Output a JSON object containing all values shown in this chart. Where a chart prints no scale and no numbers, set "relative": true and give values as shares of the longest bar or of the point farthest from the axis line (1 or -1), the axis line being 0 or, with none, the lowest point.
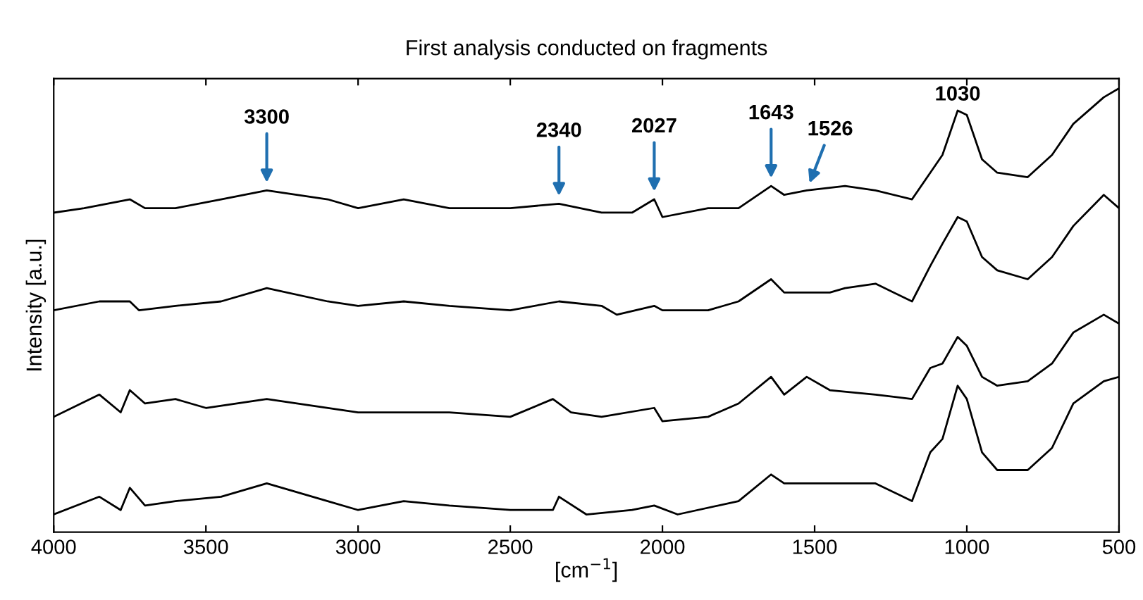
{
  "chart_data": {
    "type": "line",
    "title": "First analysis conducted on fragments",
    "xlabel": "[cm$^{−1}$]",
    "ylabel": "Intensity [a.u.]",
    "relative": true,
    "xlim": [
      4000,
      500
    ],
    "xticks": [
      4000,
      3500,
      3000,
      2500,
      2000,
      1500,
      1000,
      500
    ],
    "grid": false,
    "marker": "none",
    "line_style": "solid",
    "series": [
      {
        "color": "#000000",
        "x": [
          4000,
          3900,
          3750,
          3700,
          3600,
          3450,
          3300,
          3100,
          3000,
          2850,
          2700,
          2500,
          2340,
          2200,
          2100,
          2027,
          2000,
          1850,
          1750,
          1643,
          1600,
          1526,
          1400,
          1300,
          1180,
          1120,
          1080,
          1030,
          1000,
          950,
          900,
          800,
          720,
          650,
          550,
          500
        ],
        "values": [
          0.72,
          0.73,
          0.75,
          0.73,
          0.73,
          0.75,
          0.77,
          0.75,
          0.73,
          0.75,
          0.73,
          0.73,
          0.74,
          0.72,
          0.72,
          0.75,
          0.71,
          0.73,
          0.73,
          0.78,
          0.76,
          0.77,
          0.78,
          0.77,
          0.75,
          0.81,
          0.85,
          0.95,
          0.94,
          0.84,
          0.81,
          0.8,
          0.85,
          0.92,
          0.98,
          1.0
        ]
      },
      {
        "color": "#000000",
        "x": [
          4000,
          3850,
          3750,
          3720,
          3600,
          3450,
          3300,
          3100,
          3000,
          2850,
          2700,
          2500,
          2340,
          2200,
          2150,
          2027,
          2000,
          1850,
          1750,
          1643,
          1600,
          1526,
          1450,
          1400,
          1300,
          1180,
          1120,
          1080,
          1030,
          1000,
          950,
          900,
          800,
          720,
          650,
          550,
          500
        ],
        "values": [
          0.5,
          0.52,
          0.52,
          0.5,
          0.51,
          0.52,
          0.55,
          0.52,
          0.51,
          0.52,
          0.51,
          0.5,
          0.52,
          0.51,
          0.49,
          0.51,
          0.5,
          0.5,
          0.52,
          0.57,
          0.54,
          0.54,
          0.54,
          0.55,
          0.56,
          0.52,
          0.6,
          0.65,
          0.71,
          0.7,
          0.62,
          0.59,
          0.57,
          0.62,
          0.69,
          0.76,
          0.73
        ]
      },
      {
        "color": "#000000",
        "x": [
          4000,
          3850,
          3780,
          3750,
          3700,
          3600,
          3500,
          3300,
          3000,
          2850,
          2700,
          2500,
          2360,
          2300,
          2200,
          2027,
          2000,
          1850,
          1750,
          1643,
          1600,
          1526,
          1450,
          1300,
          1180,
          1120,
          1080,
          1030,
          1000,
          950,
          900,
          800,
          720,
          650,
          550,
          500
        ],
        "values": [
          0.26,
          0.31,
          0.27,
          0.32,
          0.29,
          0.3,
          0.28,
          0.3,
          0.27,
          0.27,
          0.27,
          0.26,
          0.3,
          0.27,
          0.26,
          0.28,
          0.25,
          0.26,
          0.29,
          0.35,
          0.31,
          0.35,
          0.32,
          0.31,
          0.3,
          0.37,
          0.38,
          0.44,
          0.42,
          0.35,
          0.33,
          0.34,
          0.38,
          0.45,
          0.49,
          0.47
        ]
      },
      {
        "color": "#000000",
        "x": [
          4000,
          3850,
          3780,
          3750,
          3700,
          3600,
          3450,
          3300,
          3100,
          3000,
          2850,
          2700,
          2500,
          2360,
          2340,
          2250,
          2100,
          2027,
          1950,
          1750,
          1643,
          1600,
          1526,
          1450,
          1300,
          1180,
          1120,
          1080,
          1030,
          1000,
          950,
          900,
          800,
          720,
          650,
          550,
          500
        ],
        "values": [
          0.04,
          0.08,
          0.05,
          0.1,
          0.06,
          0.07,
          0.08,
          0.11,
          0.07,
          0.05,
          0.07,
          0.06,
          0.05,
          0.05,
          0.08,
          0.04,
          0.05,
          0.06,
          0.04,
          0.07,
          0.13,
          0.11,
          0.11,
          0.11,
          0.11,
          0.07,
          0.18,
          0.21,
          0.33,
          0.3,
          0.18,
          0.14,
          0.14,
          0.19,
          0.29,
          0.34,
          0.35
        ]
      }
    ],
    "annotations": [
      {
        "text": "3300",
        "x": 3300,
        "y": 0.77
      },
      {
        "text": "2340",
        "x": 2340,
        "y": 0.74
      },
      {
        "text": "2027",
        "x": 2027,
        "y": 0.75
      },
      {
        "text": "1643",
        "x": 1643,
        "y": 0.78
      },
      {
        "text": "1526",
        "x": 1526,
        "y": 0.77
      },
      {
        "text": "1030",
        "x": 1030,
        "y": 0.95
      }
    ]
  }
}
